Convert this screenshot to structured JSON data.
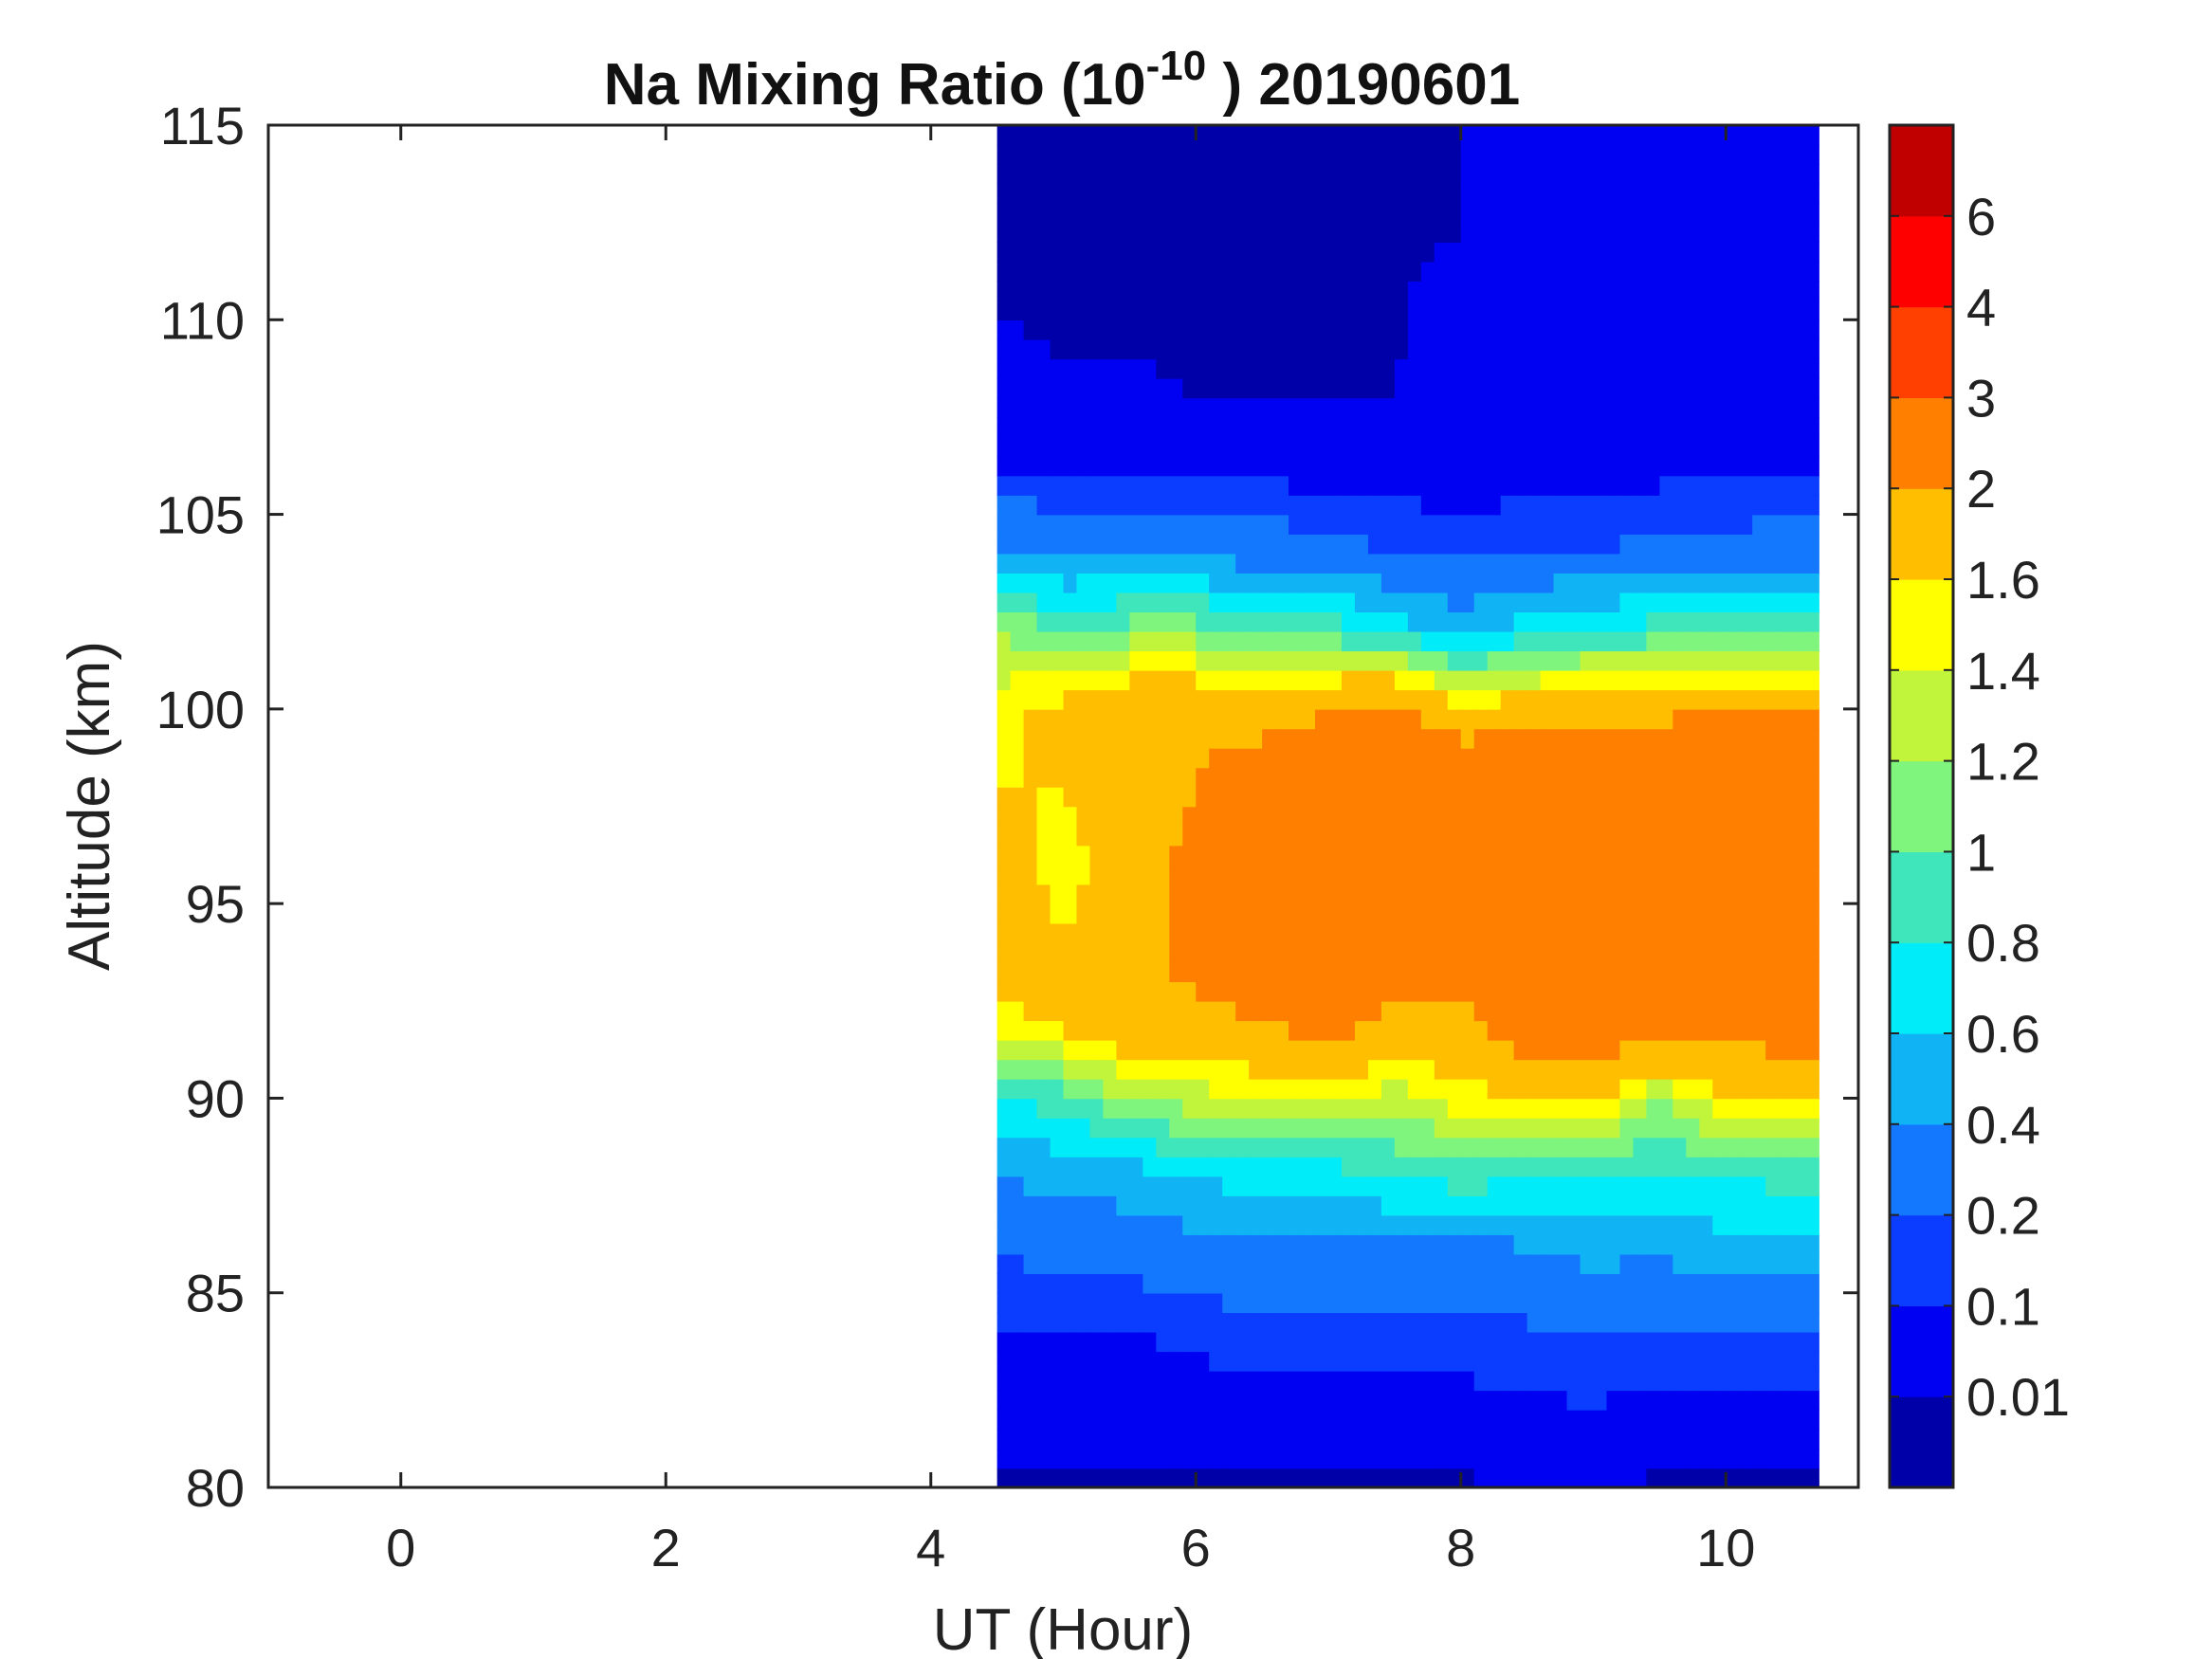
{
  "chart_data": {
    "type": "heatmap",
    "subtype": "filled-contour",
    "title": {
      "text": "Na Mixing Ratio (10",
      "superscript": "-10",
      "suffix": " ) 20190601"
    },
    "xlabel": "UT (Hour)",
    "ylabel": "Altitude (km)",
    "xlim": [
      -1,
      11
    ],
    "ylim": [
      80,
      115
    ],
    "xticks": [
      0,
      2,
      4,
      6,
      8,
      10
    ],
    "yticks": [
      80,
      85,
      90,
      95,
      100,
      105,
      110,
      115
    ],
    "data_x_range": [
      4.5,
      10.7
    ],
    "contour_levels": {
      "labels": [
        "0.01",
        "0.1",
        "0.2",
        "0.4",
        "0.6",
        "0.8",
        "1",
        "1.2",
        "1.4",
        "1.6",
        "2",
        "3",
        "4",
        "6"
      ],
      "colors": [
        "#0000a8",
        "#0000f2",
        "#0a3dff",
        "#1478ff",
        "#10b4f5",
        "#00ecf8",
        "#3fe6bb",
        "#7ff57e",
        "#c1f53b",
        "#ffff00",
        "#ffbe00",
        "#ff7f00",
        "#ff4000",
        "#ff0000",
        "#c00000"
      ]
    },
    "profiles": {
      "x": [
        4.5,
        5.0,
        5.5,
        6.0,
        6.5,
        7.0,
        7.5,
        8.0,
        8.5,
        9.0,
        9.5,
        10.0,
        10.7
      ],
      "altitude": [
        80,
        82,
        84,
        86,
        88,
        90,
        92,
        94,
        96,
        98,
        100,
        102,
        104,
        106,
        108,
        110,
        112,
        114
      ],
      "values": [
        [
          0.0,
          0.05,
          0.09,
          0.2,
          0.4,
          0.8,
          1.5,
          1.9,
          1.7,
          1.6,
          1.5,
          1.2,
          0.4,
          0.1,
          0.05,
          0.01,
          0.01,
          0.01
        ],
        [
          0.0,
          0.05,
          0.1,
          0.25,
          0.45,
          0.9,
          1.7,
          1.6,
          1.5,
          1.6,
          1.7,
          1.0,
          0.35,
          0.1,
          0.02,
          0.0,
          0.0,
          0.0
        ],
        [
          0.0,
          0.05,
          0.1,
          0.25,
          0.5,
          1.2,
          1.9,
          1.8,
          1.8,
          1.8,
          1.9,
          1.1,
          0.35,
          0.1,
          0.02,
          0.0,
          0.0,
          0.0
        ],
        [
          0.0,
          0.05,
          0.12,
          0.3,
          0.6,
          1.3,
          1.9,
          2.2,
          2.1,
          2.0,
          1.9,
          1.1,
          0.35,
          0.08,
          0.01,
          0.0,
          0.0,
          0.0
        ],
        [
          0.0,
          0.06,
          0.15,
          0.35,
          0.7,
          1.4,
          2.0,
          2.3,
          2.4,
          2.3,
          1.8,
          0.9,
          0.3,
          0.08,
          0.01,
          0.0,
          0.0,
          0.0
        ],
        [
          0.0,
          0.06,
          0.15,
          0.35,
          0.7,
          1.4,
          2.2,
          2.4,
          2.5,
          2.4,
          2.0,
          0.9,
          0.25,
          0.06,
          0.01,
          0.0,
          0.0,
          0.0
        ],
        [
          0.0,
          0.06,
          0.15,
          0.3,
          0.8,
          1.3,
          1.9,
          2.3,
          2.5,
          2.6,
          2.2,
          0.7,
          0.2,
          0.05,
          0.01,
          0.0,
          0.0,
          0.0
        ],
        [
          0.0,
          0.06,
          0.15,
          0.3,
          0.9,
          1.5,
          1.9,
          2.4,
          2.6,
          2.6,
          1.6,
          0.5,
          0.15,
          0.05,
          0.05,
          0.05,
          0.01,
          0.01
        ],
        [
          0.01,
          0.08,
          0.18,
          0.35,
          0.8,
          1.6,
          2.3,
          2.5,
          2.6,
          2.5,
          1.8,
          0.7,
          0.2,
          0.06,
          0.05,
          0.05,
          0.02,
          0.01
        ],
        [
          0.01,
          0.09,
          0.2,
          0.45,
          0.7,
          1.7,
          2.3,
          2.6,
          2.6,
          2.5,
          1.9,
          0.8,
          0.2,
          0.06,
          0.02,
          0.01,
          0.01,
          0.01
        ],
        [
          0.0,
          0.07,
          0.2,
          0.4,
          0.8,
          1.2,
          2.2,
          2.6,
          2.7,
          2.6,
          1.9,
          0.9,
          0.25,
          0.08,
          0.02,
          0.01,
          0.01,
          0.01
        ],
        [
          0.0,
          0.07,
          0.2,
          0.5,
          0.8,
          1.6,
          2.2,
          2.6,
          2.7,
          2.6,
          2.0,
          0.9,
          0.25,
          0.08,
          0.02,
          0.01,
          0.01,
          0.01
        ],
        [
          0.0,
          0.08,
          0.2,
          0.5,
          0.9,
          1.6,
          2.3,
          2.7,
          2.7,
          2.5,
          2.0,
          0.9,
          0.3,
          0.1,
          0.02,
          0.01,
          0.01,
          0.01
        ]
      ]
    }
  }
}
